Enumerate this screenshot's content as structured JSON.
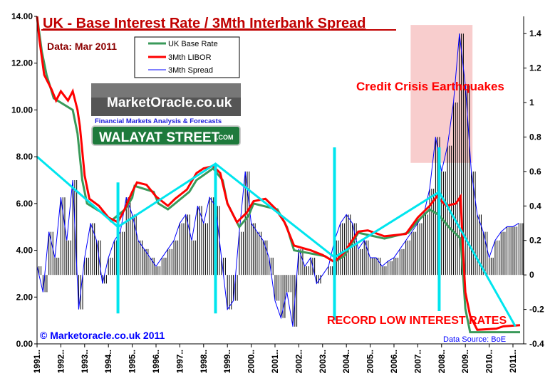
{
  "chart_data": {
    "type": "line",
    "title": "UK - Base Interest Rate / 3Mth Interbank Spread",
    "subtitle": "Data: Mar 2011",
    "legend": {
      "position": "top-center",
      "entries": [
        "UK Base Rate",
        "3Mth LIBOR",
        "3Mth Spread"
      ]
    },
    "colors": {
      "base": "#3a9a5a",
      "libor": "#ff0000",
      "spread": "#0000ff",
      "title": "#c00000",
      "annot": "#00e5ee",
      "box": "#f6c0c0"
    },
    "y_left": {
      "min": 0,
      "max": 14,
      "ticks": [
        "0.00",
        "2.00",
        "4.00",
        "6.00",
        "8.00",
        "10.00",
        "12.00",
        "14.00"
      ]
    },
    "y_right": {
      "min": -0.4,
      "max": 1.5,
      "ticks": [
        "-0.4",
        "-0.2",
        "0",
        "0.2",
        "0.4",
        "0.6",
        "0.8",
        "1",
        "1.2",
        "1.4"
      ]
    },
    "x_range": [
      1991,
      2011.45
    ],
    "x_ticks": [
      "1991..",
      "1992..",
      "1993..",
      "1994..",
      "1995..",
      "1996..",
      "1997..",
      "1998..",
      "1999..",
      "2000..",
      "2001..",
      "2002..",
      "2003..",
      "2004..",
      "2005..",
      "2006..",
      "2007..",
      "2008..",
      "2009..",
      "2010..",
      "2011.."
    ],
    "series": [
      {
        "name": "UK Base Rate",
        "axis": "left",
        "points": [
          [
            1991,
            14
          ],
          [
            1991.2,
            12.5
          ],
          [
            1991.4,
            11.5
          ],
          [
            1991.7,
            10.5
          ],
          [
            1992.5,
            10
          ],
          [
            1992.7,
            9
          ],
          [
            1992.9,
            7
          ],
          [
            1993.1,
            6
          ],
          [
            1993.9,
            5.5
          ],
          [
            1994.1,
            5.25
          ],
          [
            1994.7,
            5.75
          ],
          [
            1995.0,
            6.25
          ],
          [
            1995.1,
            6.75
          ],
          [
            1995.9,
            6.5
          ],
          [
            1996.1,
            6
          ],
          [
            1996.5,
            5.75
          ],
          [
            1996.8,
            6
          ],
          [
            1997.4,
            6.5
          ],
          [
            1997.7,
            7
          ],
          [
            1998.4,
            7.5
          ],
          [
            1998.8,
            7
          ],
          [
            1999.0,
            6
          ],
          [
            1999.5,
            5
          ],
          [
            1999.9,
            5.5
          ],
          [
            2000.1,
            6
          ],
          [
            2001.1,
            5.75
          ],
          [
            2001.5,
            5
          ],
          [
            2001.8,
            4
          ],
          [
            2003.1,
            3.75
          ],
          [
            2003.5,
            3.5
          ],
          [
            2003.9,
            3.75
          ],
          [
            2004.5,
            4.75
          ],
          [
            2005.6,
            4.5
          ],
          [
            2006.6,
            4.75
          ],
          [
            2007.0,
            5.25
          ],
          [
            2007.5,
            5.75
          ],
          [
            2007.9,
            5.5
          ],
          [
            2008.3,
            5
          ],
          [
            2008.8,
            4.5
          ],
          [
            2008.9,
            3
          ],
          [
            2009.0,
            1.5
          ],
          [
            2009.2,
            0.5
          ],
          [
            2011.3,
            0.5
          ]
        ]
      },
      {
        "name": "3Mth LIBOR",
        "axis": "left",
        "points": [
          [
            1991,
            14
          ],
          [
            1991.1,
            13
          ],
          [
            1991.3,
            11.5
          ],
          [
            1991.6,
            10.9
          ],
          [
            1991.8,
            10.4
          ],
          [
            1992.0,
            10.8
          ],
          [
            1992.3,
            10.4
          ],
          [
            1992.5,
            10.8
          ],
          [
            1992.7,
            10.0
          ],
          [
            1992.8,
            9.3
          ],
          [
            1993.0,
            7.2
          ],
          [
            1993.2,
            6.2
          ],
          [
            1993.6,
            5.9
          ],
          [
            1994.0,
            5.4
          ],
          [
            1994.4,
            5.2
          ],
          [
            1994.7,
            5.8
          ],
          [
            1995.0,
            6.5
          ],
          [
            1995.2,
            6.9
          ],
          [
            1995.6,
            6.8
          ],
          [
            1996.0,
            6.3
          ],
          [
            1996.5,
            5.9
          ],
          [
            1996.8,
            6.2
          ],
          [
            1997.3,
            6.6
          ],
          [
            1997.7,
            7.3
          ],
          [
            1998.0,
            7.5
          ],
          [
            1998.4,
            7.6
          ],
          [
            1998.7,
            7.3
          ],
          [
            1999.0,
            6.0
          ],
          [
            1999.4,
            5.2
          ],
          [
            1999.8,
            5.6
          ],
          [
            2000.1,
            6.1
          ],
          [
            2000.6,
            6.2
          ],
          [
            2001.0,
            5.8
          ],
          [
            2001.4,
            5.2
          ],
          [
            2001.8,
            4.2
          ],
          [
            2002.5,
            4.0
          ],
          [
            2003.0,
            3.8
          ],
          [
            2003.5,
            3.5
          ],
          [
            2003.9,
            3.9
          ],
          [
            2004.5,
            4.8
          ],
          [
            2004.9,
            4.85
          ],
          [
            2005.6,
            4.6
          ],
          [
            2006.5,
            4.7
          ],
          [
            2007.0,
            5.4
          ],
          [
            2007.5,
            5.9
          ],
          [
            2007.8,
            6.3
          ],
          [
            2008.2,
            5.9
          ],
          [
            2008.6,
            6.0
          ],
          [
            2008.8,
            6.3
          ],
          [
            2008.9,
            4.0
          ],
          [
            2009.0,
            2.2
          ],
          [
            2009.2,
            1.2
          ],
          [
            2009.5,
            0.6
          ],
          [
            2010.3,
            0.65
          ],
          [
            2010.6,
            0.75
          ],
          [
            2011.3,
            0.8
          ]
        ]
      },
      {
        "name": "3Mth Spread",
        "axis": "right",
        "start": 1991.0,
        "step": 0.25,
        "values": [
          0.05,
          -0.1,
          0.25,
          0.1,
          0.45,
          0.2,
          0.55,
          -0.2,
          0.1,
          0.3,
          0.2,
          -0.05,
          0.1,
          0.2,
          0.25,
          0.45,
          0.35,
          0.2,
          0.15,
          0.1,
          0.05,
          0.1,
          0.15,
          0.2,
          0.3,
          0.35,
          0.2,
          0.4,
          0.3,
          0.45,
          0.4,
          0.1,
          -0.2,
          -0.15,
          0.25,
          0.6,
          0.3,
          0.25,
          0.2,
          0.1,
          -0.15,
          -0.25,
          -0.1,
          -0.3,
          0.15,
          0.05,
          0.1,
          -0.05,
          0.0,
          0.05,
          0.2,
          0.3,
          0.35,
          0.3,
          0.15,
          0.2,
          0.1,
          0.1,
          0.05,
          0.08,
          0.1,
          0.15,
          0.2,
          0.25,
          0.3,
          0.35,
          0.5,
          0.8,
          0.6,
          0.75,
          1.0,
          1.4,
          1.1,
          0.6,
          0.35,
          0.25,
          0.1,
          0.2,
          0.25,
          0.28,
          0.28,
          0.3
        ]
      }
    ],
    "annotations": {
      "trend_line": [
        [
          1991,
          8.0
        ],
        [
          1994.4,
          5.0
        ],
        [
          1998.5,
          7.7
        ],
        [
          2003.5,
          3.7
        ],
        [
          2007.9,
          6.5
        ],
        [
          2011.1,
          0.75
        ]
      ],
      "verticals": [
        [
          1994.4,
          1.3,
          6.9
        ],
        [
          1998.5,
          1.3,
          7.7
        ],
        [
          2003.5,
          1.0,
          8.4
        ],
        [
          2007.9,
          1.4,
          8.4
        ]
      ],
      "crisis_box": {
        "x": [
          2006.7,
          2009.3
        ],
        "y_right": [
          0.65,
          1.45
        ]
      },
      "crisis_label": "Credit Crisis Earthquakes",
      "low_label": "RECORD LOW INTEREST RATES",
      "copyright": "© Marketoracle.co.uk 2011",
      "source": "Data Source: BoE"
    }
  },
  "logo": {
    "name": "MarketOracle.co.uk",
    "tagline": "Financial Markets Analysis & Forecasts",
    "sign": "WALAYAT STREET",
    "sign_suffix": ".COM"
  }
}
